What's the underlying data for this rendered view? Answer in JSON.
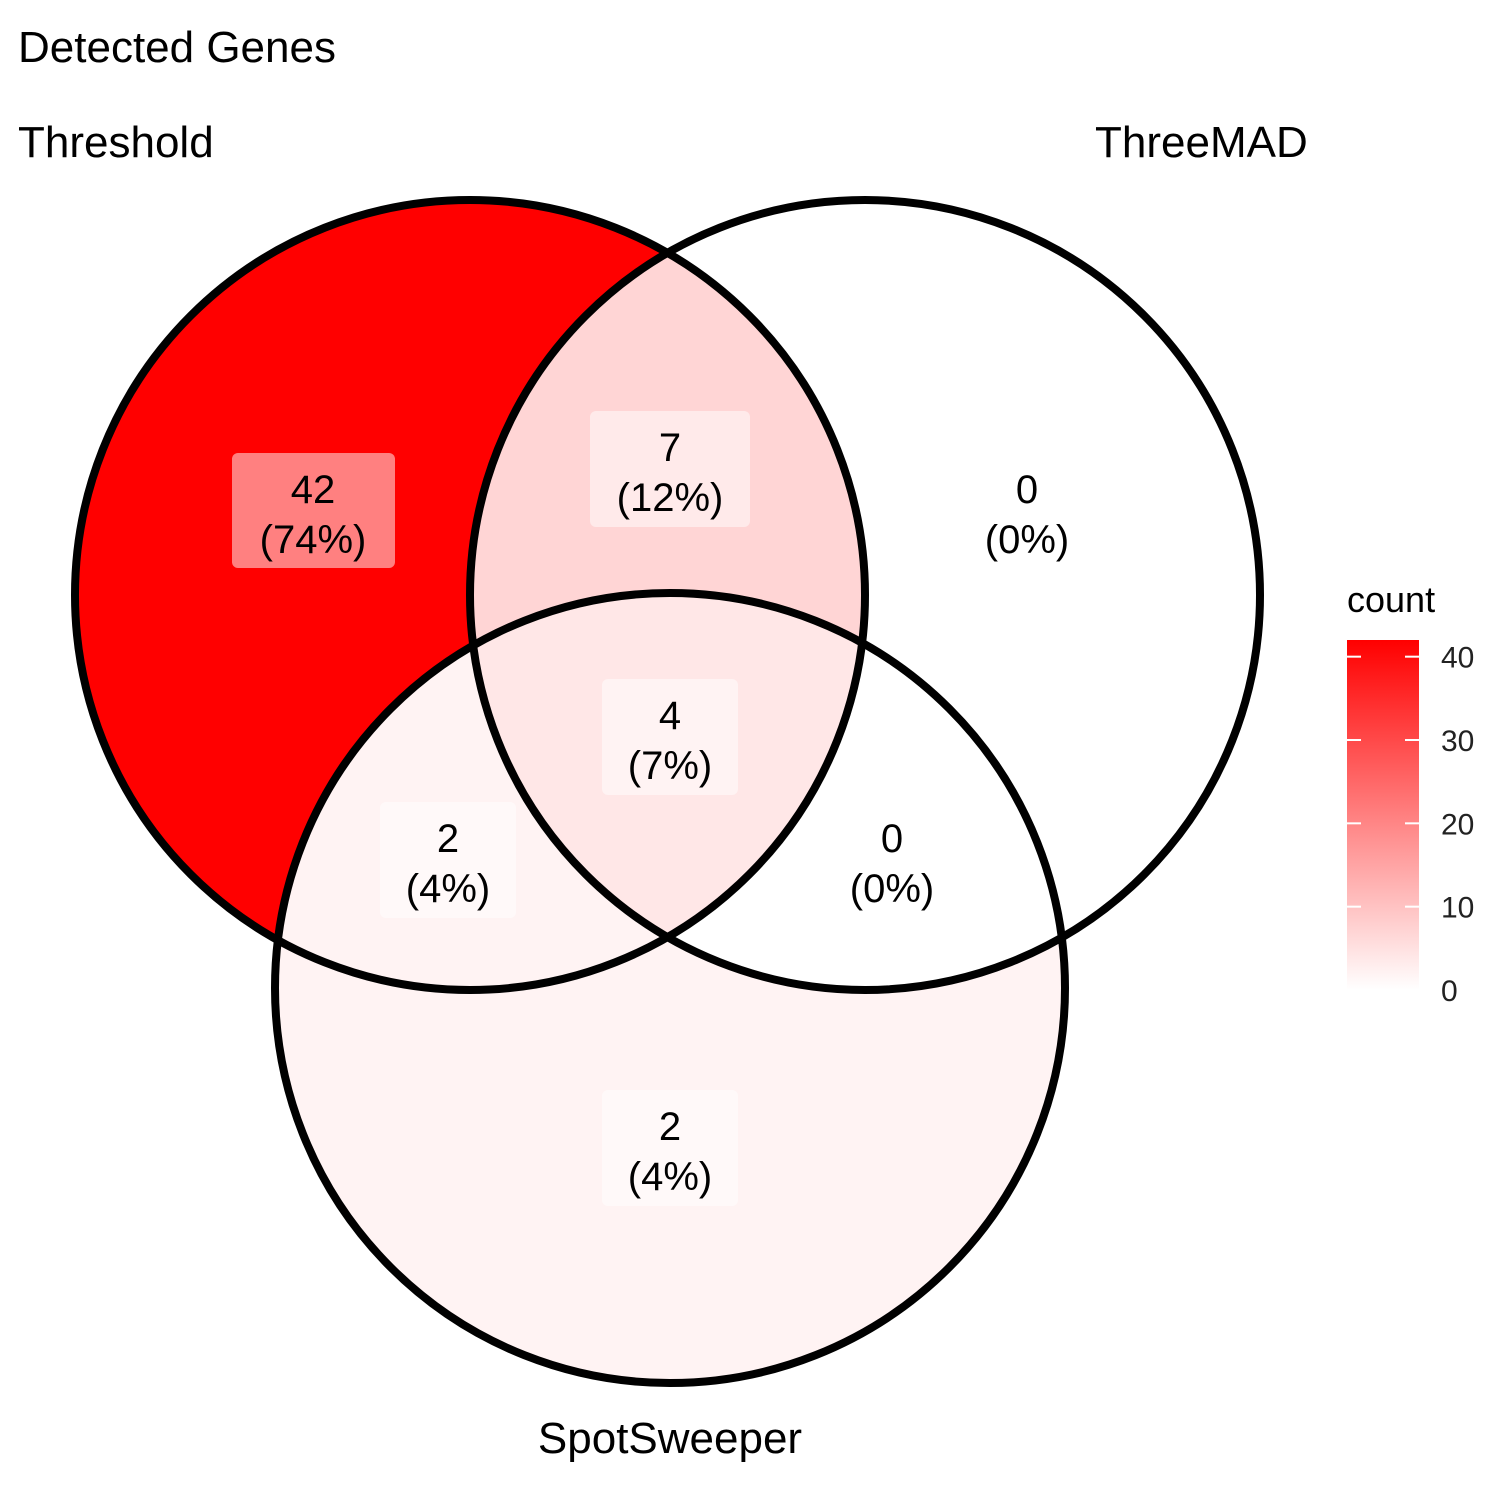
{
  "title": "Detected Genes",
  "sets": [
    {
      "name": "Threshold"
    },
    {
      "name": "ThreeMAD"
    },
    {
      "name": "SpotSweeper"
    }
  ],
  "chart_data": {
    "type": "venn",
    "title": "Detected Genes",
    "sets": [
      "Threshold",
      "ThreeMAD",
      "SpotSweeper"
    ],
    "regions": [
      {
        "id": "threshold-only",
        "sets": [
          "Threshold"
        ],
        "count": "42",
        "percent": "(74%)",
        "value": 42
      },
      {
        "id": "threshold-threemad",
        "sets": [
          "Threshold",
          "ThreeMAD"
        ],
        "count": "7",
        "percent": "(12%)",
        "value": 7
      },
      {
        "id": "threemad-only",
        "sets": [
          "ThreeMAD"
        ],
        "count": "0",
        "percent": "(0%)",
        "value": 0
      },
      {
        "id": "all-three",
        "sets": [
          "Threshold",
          "ThreeMAD",
          "SpotSweeper"
        ],
        "count": "4",
        "percent": "(7%)",
        "value": 4
      },
      {
        "id": "threshold-spotsweeper",
        "sets": [
          "Threshold",
          "SpotSweeper"
        ],
        "count": "2",
        "percent": "(4%)",
        "value": 2
      },
      {
        "id": "threemad-spotsweeper",
        "sets": [
          "ThreeMAD",
          "SpotSweeper"
        ],
        "count": "0",
        "percent": "(0%)",
        "value": 0
      },
      {
        "id": "spotsweeper-only",
        "sets": [
          "SpotSweeper"
        ],
        "count": "2",
        "percent": "(4%)",
        "value": 2
      }
    ],
    "legend": {
      "title": "count",
      "ticks": [
        "0",
        "10",
        "20",
        "30",
        "40"
      ],
      "tick_values": [
        0,
        10,
        20,
        30,
        40
      ],
      "range": [
        0,
        42
      ],
      "color_low": "#ffffff",
      "color_high": "#ff0000"
    }
  }
}
